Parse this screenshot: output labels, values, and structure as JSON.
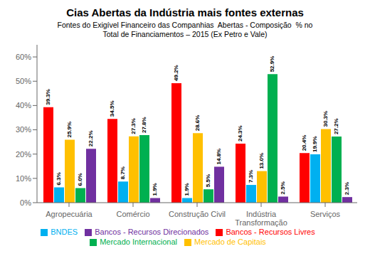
{
  "chart_data": {
    "type": "bar",
    "title": "Cias Abertas da Indústria mais fontes externas",
    "subtitle": "Fontes do Exigível Financeiro das Companhias  Abertas - Composição  % no\nTotal de Financiamentos – 2015 (Ex Petro e Vale)",
    "categories": [
      "Agropecuária",
      "Comércio",
      "Construção Civil",
      "Indústria\nTransformação",
      "Serviços"
    ],
    "series": [
      {
        "name": "Bancos - Recursos Livres",
        "color": "#FF0000",
        "values": [
          39.3,
          34.5,
          49.2,
          24.3,
          20.4
        ],
        "value_labels": [
          "39.3%",
          "34.5%",
          "49.2%",
          "24.3%",
          "20.4%"
        ]
      },
      {
        "name": "BNDES",
        "color": "#00B0F0",
        "values": [
          6.3,
          8.7,
          1.9,
          7.3,
          19.9
        ],
        "value_labels": [
          "6.3%",
          "8.7%",
          "1.9%",
          "7.3%",
          "19.9%"
        ]
      },
      {
        "name": "Mercado de Capitais",
        "color": "#FFC000",
        "values": [
          25.9,
          27.3,
          28.6,
          13.0,
          30.3
        ],
        "value_labels": [
          "25.9%",
          "27.3%",
          "28.6%",
          "13.0%",
          "30.3%"
        ]
      },
      {
        "name": "Mercado Internacional",
        "color": "#00B050",
        "values": [
          6.0,
          27.8,
          5.5,
          52.9,
          27.2
        ],
        "value_labels": [
          "6.0%",
          "27.8%",
          "5.5%",
          "52.9%",
          "27.2%"
        ]
      },
      {
        "name": "Bancos - Recursos Direcionados",
        "color": "#7030A0",
        "values": [
          22.2,
          1.9,
          14.8,
          2.5,
          2.3
        ],
        "value_labels": [
          "22.2%",
          "1.9%",
          "14.8%",
          "2.5%",
          "2.3%"
        ]
      }
    ],
    "ylim": [
      0,
      65
    ],
    "yticks": [
      {
        "value": 0,
        "label": "0%"
      },
      {
        "value": 10,
        "label": "10%"
      },
      {
        "value": 20,
        "label": "20%"
      },
      {
        "value": 30,
        "label": "30%"
      },
      {
        "value": 40,
        "label": "40%"
      },
      {
        "value": 50,
        "label": "50%"
      },
      {
        "value": 60,
        "label": "60%"
      }
    ],
    "grid": false,
    "data_labels": true,
    "legend": "bottom"
  }
}
